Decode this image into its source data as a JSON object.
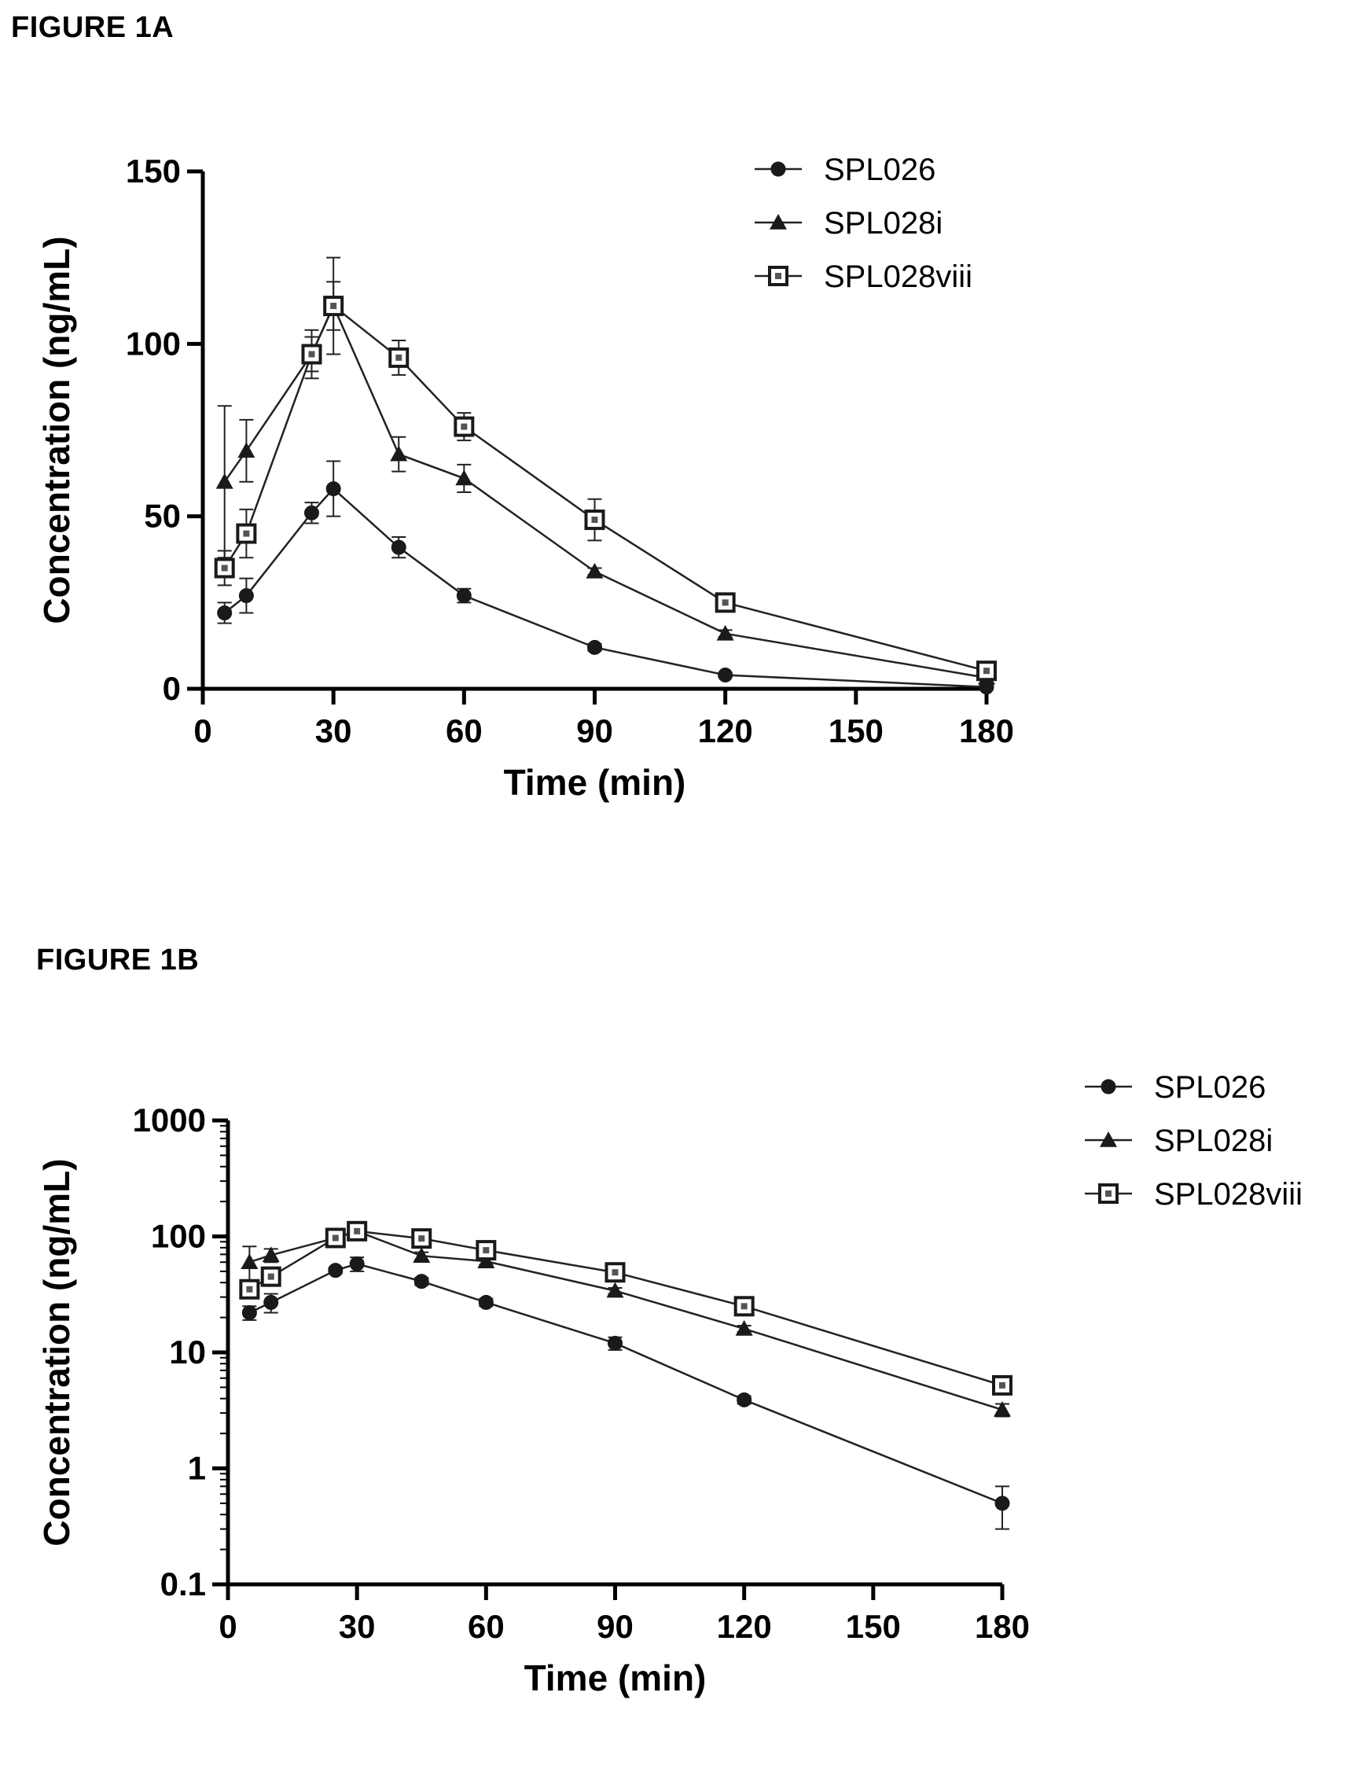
{
  "figures": [
    {
      "label": "FIGURE 1A"
    },
    {
      "label": "FIGURE 1B"
    }
  ],
  "chart_data": [
    {
      "type": "line",
      "scale": "linear",
      "title": "",
      "xlabel": "Time (min)",
      "ylabel": "Concentration (ng/mL)",
      "xlim": [
        0,
        180
      ],
      "ylim": [
        0,
        150
      ],
      "xticks": [
        0,
        30,
        60,
        90,
        120,
        150,
        180
      ],
      "xtick_labels": [
        "0",
        "30",
        "60",
        "90",
        "120",
        "150",
        "180"
      ],
      "yticks": [
        0,
        50,
        100,
        150
      ],
      "ytick_labels": [
        "0",
        "50",
        "100",
        "150"
      ],
      "grid": false,
      "legend_position": "top-right",
      "series": [
        {
          "name": "SPL026",
          "marker": "circle",
          "x": [
            5,
            10,
            25,
            30,
            45,
            60,
            90,
            120,
            180
          ],
          "y": [
            22,
            27,
            51,
            58,
            41,
            27,
            12,
            4,
            0.5
          ],
          "err": [
            3,
            5,
            3,
            8,
            3,
            2,
            1,
            0.5,
            0.2
          ]
        },
        {
          "name": "SPL028i",
          "marker": "triangle",
          "x": [
            5,
            10,
            25,
            30,
            45,
            60,
            90,
            120,
            180
          ],
          "y": [
            60,
            69,
            97,
            111,
            68,
            61,
            34,
            16,
            3.2
          ],
          "err": [
            22,
            9,
            7,
            14,
            5,
            4,
            1,
            1,
            0.5
          ]
        },
        {
          "name": "SPL028viii",
          "marker": "square",
          "x": [
            5,
            10,
            25,
            30,
            45,
            60,
            90,
            120,
            180
          ],
          "y": [
            35,
            45,
            97,
            111,
            96,
            76,
            49,
            25,
            5.2
          ],
          "err": [
            5,
            7,
            5,
            7,
            5,
            4,
            6,
            1,
            0.8
          ]
        }
      ]
    },
    {
      "type": "line",
      "scale": "log",
      "title": "",
      "xlabel": "Time (min)",
      "ylabel": "Concentration (ng/mL)",
      "xlim": [
        0,
        180
      ],
      "ylim": [
        0.1,
        1000
      ],
      "xticks": [
        0,
        30,
        60,
        90,
        120,
        150,
        180
      ],
      "xtick_labels": [
        "0",
        "30",
        "60",
        "90",
        "120",
        "150",
        "180"
      ],
      "yticks": [
        0.1,
        1,
        10,
        100,
        1000
      ],
      "ytick_labels": [
        "0.1",
        "1",
        "10",
        "100",
        "1000"
      ],
      "grid": false,
      "legend_position": "top-right",
      "series": [
        {
          "name": "SPL026",
          "marker": "circle",
          "x": [
            5,
            10,
            25,
            30,
            45,
            60,
            90,
            120,
            180
          ],
          "y": [
            22,
            27,
            51,
            58,
            41,
            27,
            12,
            3.9,
            0.5
          ],
          "err": [
            3,
            5,
            3,
            8,
            3,
            2,
            1.5,
            0.3,
            0.2
          ]
        },
        {
          "name": "SPL028i",
          "marker": "triangle",
          "x": [
            5,
            10,
            25,
            30,
            45,
            60,
            90,
            120,
            180
          ],
          "y": [
            60,
            69,
            97,
            111,
            68,
            61,
            34,
            16,
            3.2
          ],
          "err": [
            22,
            9,
            7,
            14,
            5,
            4,
            2,
            1,
            0.4
          ]
        },
        {
          "name": "SPL028viii",
          "marker": "square",
          "x": [
            5,
            10,
            25,
            30,
            45,
            60,
            90,
            120,
            180
          ],
          "y": [
            35,
            45,
            97,
            111,
            96,
            76,
            49,
            25,
            5.2
          ],
          "err": [
            5,
            7,
            5,
            7,
            5,
            4,
            6,
            1,
            0.6
          ]
        }
      ]
    }
  ]
}
